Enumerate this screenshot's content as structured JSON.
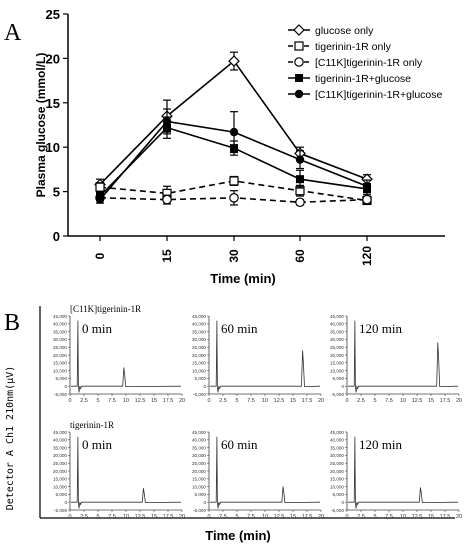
{
  "figure": {
    "panel_a_label": "A",
    "panel_b_label": "B"
  },
  "chart_data": [
    {
      "type": "line",
      "panel": "A",
      "ylabel": "Plasma glucose (mmol/L)",
      "xlabel": "Time (min)",
      "categories": [
        "0",
        "15",
        "30",
        "60",
        "120"
      ],
      "ylim": [
        0,
        25
      ],
      "yticks": [
        0,
        5,
        10,
        15,
        20,
        25
      ],
      "legend_position": "top-right",
      "series": [
        {
          "name": "glucose only",
          "values": [
            5.8,
            13.5,
            19.7,
            9.3,
            6.4
          ],
          "errors": [
            0.6,
            1.8,
            1.0,
            0.7,
            0.5
          ],
          "marker": "open-diamond",
          "dash": "solid"
        },
        {
          "name": "tigerinin-1R only",
          "values": [
            5.5,
            4.8,
            6.2,
            5.1,
            4.0
          ],
          "errors": [
            0.5,
            0.8,
            0.5,
            0.6,
            0.3
          ],
          "marker": "open-square",
          "dash": "dashed"
        },
        {
          "name": "[C11K]tigerinin-1R only",
          "values": [
            4.3,
            4.1,
            4.3,
            3.8,
            4.1
          ],
          "errors": [
            0.3,
            0.5,
            0.8,
            0.3,
            0.4
          ],
          "marker": "open-circle",
          "dash": "dashed"
        },
        {
          "name": "tigerinin-1R+glucose",
          "values": [
            4.5,
            12.2,
            9.9,
            6.4,
            5.3
          ],
          "errors": [
            0.4,
            1.2,
            0.8,
            1.0,
            0.6
          ],
          "marker": "filled-square",
          "dash": "solid"
        },
        {
          "name": "[C11K]tigerinin-1R+glucose",
          "values": [
            4.1,
            12.9,
            11.7,
            8.6,
            5.6
          ],
          "errors": [
            0.4,
            1.4,
            2.3,
            1.0,
            0.7
          ],
          "marker": "filled-circle",
          "dash": "solid"
        }
      ]
    },
    {
      "type": "line",
      "panel": "B",
      "ylabel": "Detector A Ch1 210nm(μV)",
      "xlabel": "Time (min)",
      "xlim": [
        0,
        20
      ],
      "xticks": [
        0,
        2.5,
        5,
        7.5,
        10,
        12.5,
        15,
        17.5,
        20
      ],
      "xtick_labels": [
        "0",
        "2.5",
        "5",
        "7.5",
        "10",
        "12.5",
        "15",
        "17.5",
        "20"
      ],
      "ylim": [
        -5000,
        45000
      ],
      "ytick_labels": [
        "-5,000",
        "0",
        "5,000",
        "10,000",
        "15,000",
        "20,000",
        "25,000",
        "30,000",
        "35,000",
        "40,000",
        "45,000"
      ],
      "rows": [
        {
          "label": "[C11K]tigerinin-1R",
          "plots": [
            {
              "time_label": "0 min",
              "peak_x": 9.7,
              "peak_h": 12000
            },
            {
              "time_label": "60 min",
              "peak_x": 16.8,
              "peak_h": 23000
            },
            {
              "time_label": "120 min",
              "peak_x": 16.3,
              "peak_h": 28000
            }
          ]
        },
        {
          "label": "tigerinin-1R",
          "plots": [
            {
              "time_label": "0 min",
              "peak_x": 13.2,
              "peak_h": 9000
            },
            {
              "time_label": "60 min",
              "peak_x": 13.3,
              "peak_h": 10000
            },
            {
              "time_label": "120 min",
              "peak_x": 13.2,
              "peak_h": 9500
            }
          ]
        }
      ]
    }
  ]
}
